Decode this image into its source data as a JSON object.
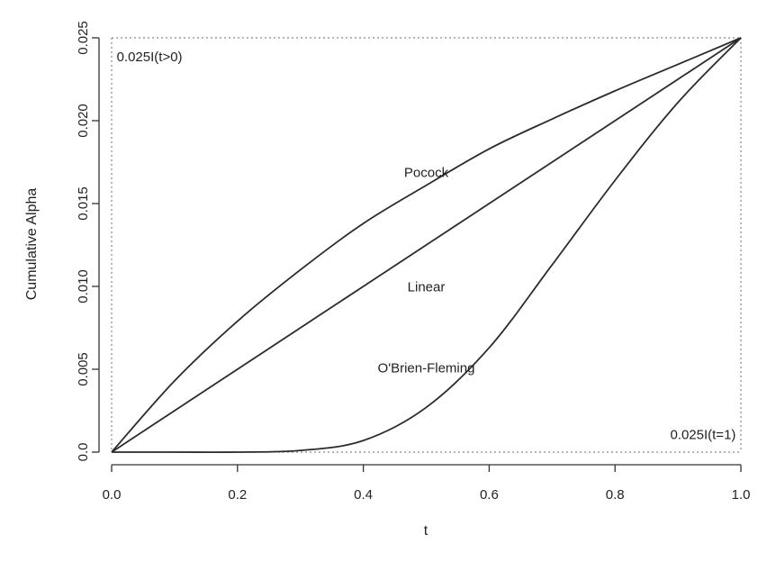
{
  "chart_data": {
    "type": "line",
    "xlabel": "t",
    "ylabel": "Cumulative Alpha",
    "xlim": [
      0,
      1
    ],
    "ylim": [
      0,
      0.025
    ],
    "xticks": [
      "0.0",
      "0.2",
      "0.4",
      "0.6",
      "0.8",
      "1.0"
    ],
    "yticks": [
      "0.0",
      "0.005",
      "0.010",
      "0.015",
      "0.020",
      "0.025"
    ],
    "grid": false,
    "x": [
      0,
      0.1,
      0.2,
      0.3,
      0.4,
      0.5,
      0.6,
      0.7,
      0.8,
      0.9,
      1.0
    ],
    "series": [
      {
        "name": "Pocock",
        "values": [
          0,
          0.0043,
          0.0079,
          0.011,
          0.0138,
          0.0161,
          0.0183,
          0.0201,
          0.0218,
          0.0234,
          0.025
        ],
        "label_at": [
          0.5,
          0.0166
        ]
      },
      {
        "name": "Linear",
        "values": [
          0,
          0.0025,
          0.005,
          0.0075,
          0.01,
          0.0125,
          0.015,
          0.0175,
          0.02,
          0.0225,
          0.025
        ],
        "label_at": [
          0.5,
          0.0097
        ]
      },
      {
        "name": "O'Brien-Fleming",
        "values": [
          0,
          0,
          0,
          0.0001,
          0.0007,
          0.0027,
          0.0063,
          0.0113,
          0.0164,
          0.0211,
          0.025
        ],
        "label_at": [
          0.5,
          0.0048
        ]
      }
    ],
    "reference_lines": [
      {
        "name": "0.025I(t>0)",
        "label_at": [
          0.008,
          0.0236
        ]
      },
      {
        "name": "0.025I(t=1)",
        "label_at": [
          0.992,
          0.0008
        ]
      }
    ]
  }
}
